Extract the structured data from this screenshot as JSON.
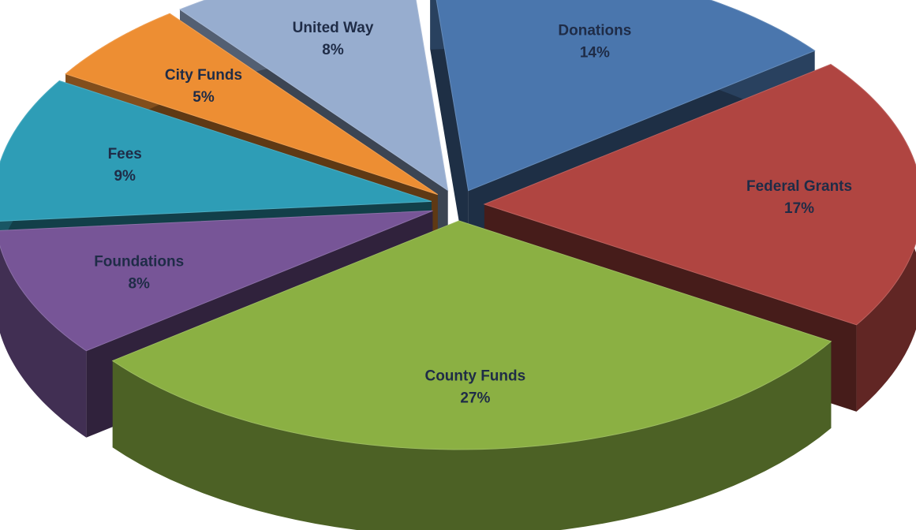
{
  "chart_data": {
    "type": "pie",
    "style": "3d-exploded",
    "title": "",
    "slices": [
      {
        "label": "Donations",
        "percent_label": "14%",
        "value": 14,
        "color": "#4a76ad"
      },
      {
        "label": "Federal Grants",
        "percent_label": "17%",
        "value": 17,
        "color": "#b04541"
      },
      {
        "label": "County Funds",
        "percent_label": "27%",
        "value": 27,
        "color": "#8bb043"
      },
      {
        "label": "Foundations",
        "percent_label": "8%",
        "value": 8,
        "color": "#775597"
      },
      {
        "label": "Fees",
        "percent_label": "9%",
        "value": 9,
        "color": "#2e9db6"
      },
      {
        "label": "City Funds",
        "percent_label": "5%",
        "value": 5,
        "color": "#ed8e33"
      },
      {
        "label": "United Way",
        "percent_label": "8%",
        "value": 8,
        "color": "#97adcf"
      }
    ]
  }
}
